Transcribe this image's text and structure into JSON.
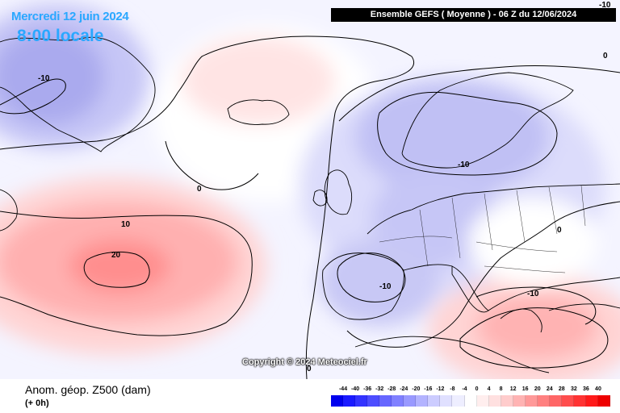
{
  "header": {
    "date": "Mercredi 12 juin 2024",
    "local_time": "8:00 locale",
    "model_banner": "Ensemble GEFS  ( Moyenne )  -  06 Z du 12/06/2024"
  },
  "map": {
    "copyright": "Copyright © 2024 Meteociel.fr",
    "contour_labels": [
      "-10",
      "0",
      "-10",
      "0",
      "-10",
      "0",
      "10",
      "20",
      "0",
      "-10",
      "-10"
    ]
  },
  "footer": {
    "field_title": "Anom. géop. Z500 (dam)",
    "lead_time": "(+ 0h)"
  },
  "legend": {
    "labels": [
      "-44",
      "-40",
      "-36",
      "-32",
      "-28",
      "-24",
      "-20",
      "-16",
      "-12",
      "-8",
      "-4",
      "0",
      "4",
      "8",
      "12",
      "16",
      "20",
      "24",
      "28",
      "32",
      "36",
      "40"
    ],
    "colors": [
      "#0000ee",
      "#1a1aff",
      "#3333ff",
      "#4d4dff",
      "#6666ff",
      "#8080ff",
      "#9999ff",
      "#b3b3ff",
      "#ccccff",
      "#e0e0ff",
      "#eeeeff",
      "#ffffff",
      "#ffeeee",
      "#ffe0e0",
      "#ffcccc",
      "#ffb3b3",
      "#ff9999",
      "#ff8080",
      "#ff6666",
      "#ff4d4d",
      "#ff3333",
      "#ff1a1a",
      "#ee0000"
    ]
  }
}
